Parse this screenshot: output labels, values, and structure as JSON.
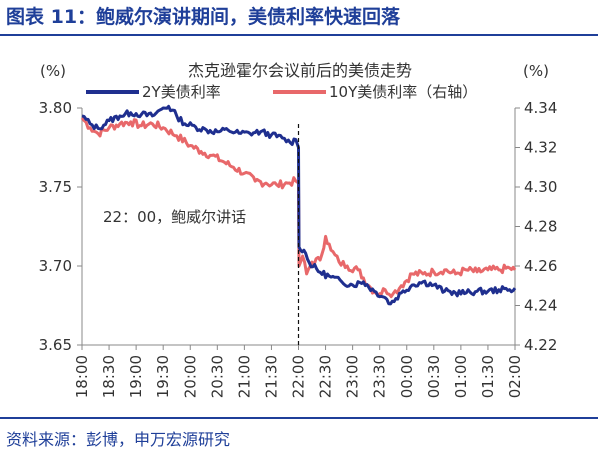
{
  "figure": {
    "title": "图表 11：鲍威尔演讲期间，美债利率快速回落",
    "source": "资料来源：彭博，申万宏源研究"
  },
  "colors": {
    "brand": "#1f3f99",
    "series_2y": "#1f2f8f",
    "series_10y": "#e8686a"
  },
  "chart_data": {
    "type": "line",
    "title": "杰克逊霍尔会议前后的美债走势",
    "y_left_label": "(%)",
    "y_right_label": "(%)",
    "y_left": {
      "min": 3.65,
      "max": 3.8,
      "ticks": [
        "3.80",
        "3.75",
        "3.70",
        "3.65"
      ]
    },
    "y_right": {
      "min": 4.22,
      "max": 4.34,
      "ticks": [
        "4.34",
        "4.32",
        "4.30",
        "4.28",
        "4.26",
        "4.24",
        "4.22"
      ]
    },
    "x_ticks": [
      "18:00",
      "18:30",
      "19:00",
      "19:30",
      "20:00",
      "20:30",
      "21:00",
      "21:30",
      "22:00",
      "22:30",
      "23:00",
      "23:30",
      "00:00",
      "00:30",
      "01:00",
      "01:30",
      "02:00"
    ],
    "legend": {
      "position": "top",
      "entries": [
        "2Y美债利率",
        "10Y美债利率（右轴）"
      ]
    },
    "annotation": {
      "text": "22：00，鲍威尔讲话",
      "x": 8
    },
    "series": [
      {
        "name": "2Y美债利率",
        "axis": "left",
        "color": "#1f2f8f",
        "points": [
          [
            0,
            3.795
          ],
          [
            0.3,
            3.79
          ],
          [
            0.6,
            3.787
          ],
          [
            1.0,
            3.792
          ],
          [
            1.4,
            3.795
          ],
          [
            1.8,
            3.797
          ],
          [
            2.2,
            3.796
          ],
          [
            2.6,
            3.795
          ],
          [
            3.0,
            3.8
          ],
          [
            3.2,
            3.801
          ],
          [
            3.5,
            3.795
          ],
          [
            3.8,
            3.79
          ],
          [
            4.2,
            3.788
          ],
          [
            4.6,
            3.786
          ],
          [
            5.0,
            3.785
          ],
          [
            5.4,
            3.786
          ],
          [
            5.8,
            3.784
          ],
          [
            6.2,
            3.784
          ],
          [
            6.6,
            3.785
          ],
          [
            7.0,
            3.783
          ],
          [
            7.4,
            3.781
          ],
          [
            7.7,
            3.778
          ],
          [
            7.9,
            3.78
          ],
          [
            8.0,
            3.775
          ],
          [
            8.02,
            3.712
          ],
          [
            8.2,
            3.71
          ],
          [
            8.4,
            3.702
          ],
          [
            8.8,
            3.696
          ],
          [
            9.2,
            3.693
          ],
          [
            9.6,
            3.69
          ],
          [
            10.0,
            3.688
          ],
          [
            10.4,
            3.69
          ],
          [
            10.8,
            3.684
          ],
          [
            11.2,
            3.68
          ],
          [
            11.4,
            3.676
          ],
          [
            11.8,
            3.683
          ],
          [
            12.2,
            3.688
          ],
          [
            12.6,
            3.69
          ],
          [
            13.0,
            3.688
          ],
          [
            13.4,
            3.684
          ],
          [
            13.8,
            3.683
          ],
          [
            14.2,
            3.683
          ],
          [
            14.6,
            3.684
          ],
          [
            15.0,
            3.684
          ],
          [
            15.4,
            3.685
          ],
          [
            15.8,
            3.685
          ],
          [
            16.0,
            3.686
          ]
        ]
      },
      {
        "name": "10Y美债利率（右轴）",
        "axis": "right",
        "color": "#e8686a",
        "points": [
          [
            0,
            4.335
          ],
          [
            0.3,
            4.33
          ],
          [
            0.6,
            4.327
          ],
          [
            1.0,
            4.33
          ],
          [
            1.4,
            4.332
          ],
          [
            1.8,
            4.333
          ],
          [
            2.2,
            4.331
          ],
          [
            2.6,
            4.332
          ],
          [
            3.0,
            4.33
          ],
          [
            3.5,
            4.326
          ],
          [
            4.0,
            4.321
          ],
          [
            4.4,
            4.318
          ],
          [
            4.8,
            4.316
          ],
          [
            5.2,
            4.313
          ],
          [
            5.6,
            4.31
          ],
          [
            6.0,
            4.307
          ],
          [
            6.4,
            4.303
          ],
          [
            6.8,
            4.302
          ],
          [
            7.2,
            4.301
          ],
          [
            7.6,
            4.302
          ],
          [
            7.9,
            4.303
          ],
          [
            8.0,
            4.302
          ],
          [
            8.02,
            4.26
          ],
          [
            8.15,
            4.265
          ],
          [
            8.3,
            4.256
          ],
          [
            8.5,
            4.262
          ],
          [
            8.8,
            4.263
          ],
          [
            9.0,
            4.275
          ],
          [
            9.2,
            4.268
          ],
          [
            9.5,
            4.262
          ],
          [
            9.8,
            4.26
          ],
          [
            10.2,
            4.258
          ],
          [
            10.6,
            4.25
          ],
          [
            10.8,
            4.247
          ],
          [
            11.0,
            4.246
          ],
          [
            11.2,
            4.248
          ],
          [
            11.5,
            4.246
          ],
          [
            11.8,
            4.25
          ],
          [
            12.2,
            4.256
          ],
          [
            12.6,
            4.256
          ],
          [
            13.0,
            4.257
          ],
          [
            13.4,
            4.258
          ],
          [
            13.8,
            4.256
          ],
          [
            14.2,
            4.258
          ],
          [
            14.6,
            4.257
          ],
          [
            15.0,
            4.258
          ],
          [
            15.4,
            4.258
          ],
          [
            15.8,
            4.259
          ],
          [
            16.0,
            4.258
          ]
        ]
      }
    ]
  }
}
